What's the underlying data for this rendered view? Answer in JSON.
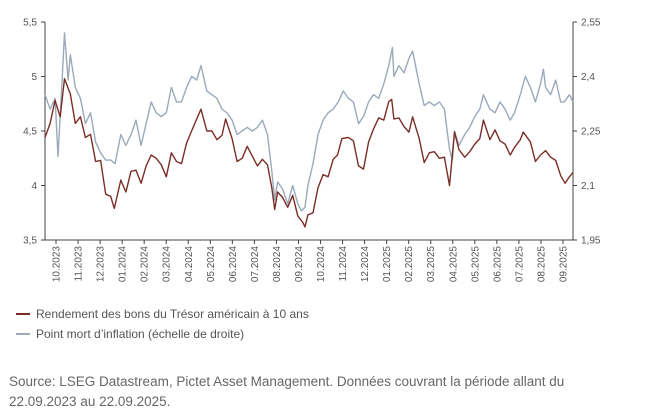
{
  "chart_data": {
    "type": "line",
    "title": "",
    "x_tick_labels": [
      "10.2023",
      "11.2023",
      "12.2023",
      "01.2024",
      "02.2024",
      "03.2024",
      "04.2024",
      "05.2024",
      "06.2024",
      "07.2024",
      "08.2024",
      "09.2024",
      "10.2024",
      "11.2024",
      "12.2024",
      "01.2025",
      "02.2025",
      "03.2025",
      "04.2025",
      "05.2025",
      "06.2025",
      "07.2025",
      "08.2025",
      "09.2025"
    ],
    "y_left": {
      "ylim": [
        3.5,
        5.5
      ],
      "ticks": [
        "3,5",
        "4",
        "4,5",
        "5",
        "5,5"
      ],
      "tick_values": [
        3.5,
        4,
        4.5,
        5,
        5.5
      ]
    },
    "y_right": {
      "ylim": [
        1.95,
        2.55
      ],
      "ticks": [
        "1,95",
        "2,1",
        "2,25",
        "2,4",
        "2,55"
      ],
      "tick_values": [
        1.95,
        2.1,
        2.25,
        2.4,
        2.55
      ]
    },
    "x_range": [
      "2023-09-22",
      "2025-09-22"
    ],
    "grid": false,
    "legend_position": "bottom-left",
    "series": [
      {
        "name": "Rendement des bons du Trésor américain à 10 ans",
        "axis": "left",
        "color": "#7b2d26",
        "points": [
          [
            "2023-09-22",
            4.44
          ],
          [
            "2023-09-29",
            4.57
          ],
          [
            "2023-10-06",
            4.78
          ],
          [
            "2023-10-13",
            4.63
          ],
          [
            "2023-10-19",
            4.98
          ],
          [
            "2023-10-27",
            4.84
          ],
          [
            "2023-11-03",
            4.57
          ],
          [
            "2023-11-10",
            4.63
          ],
          [
            "2023-11-17",
            4.44
          ],
          [
            "2023-11-24",
            4.47
          ],
          [
            "2023-12-01",
            4.22
          ],
          [
            "2023-12-08",
            4.23
          ],
          [
            "2023-12-15",
            3.92
          ],
          [
            "2023-12-22",
            3.9
          ],
          [
            "2023-12-27",
            3.79
          ],
          [
            "2024-01-05",
            4.05
          ],
          [
            "2024-01-12",
            3.94
          ],
          [
            "2024-01-19",
            4.13
          ],
          [
            "2024-01-26",
            4.14
          ],
          [
            "2024-02-02",
            4.02
          ],
          [
            "2024-02-09",
            4.18
          ],
          [
            "2024-02-16",
            4.28
          ],
          [
            "2024-02-23",
            4.25
          ],
          [
            "2024-03-01",
            4.19
          ],
          [
            "2024-03-08",
            4.08
          ],
          [
            "2024-03-15",
            4.3
          ],
          [
            "2024-03-22",
            4.22
          ],
          [
            "2024-03-29",
            4.2
          ],
          [
            "2024-04-05",
            4.39
          ],
          [
            "2024-04-12",
            4.5
          ],
          [
            "2024-04-19",
            4.61
          ],
          [
            "2024-04-25",
            4.7
          ],
          [
            "2024-05-03",
            4.5
          ],
          [
            "2024-05-10",
            4.5
          ],
          [
            "2024-05-17",
            4.42
          ],
          [
            "2024-05-24",
            4.46
          ],
          [
            "2024-05-29",
            4.61
          ],
          [
            "2024-06-07",
            4.43
          ],
          [
            "2024-06-14",
            4.22
          ],
          [
            "2024-06-21",
            4.25
          ],
          [
            "2024-06-28",
            4.36
          ],
          [
            "2024-07-05",
            4.27
          ],
          [
            "2024-07-12",
            4.18
          ],
          [
            "2024-07-19",
            4.24
          ],
          [
            "2024-07-26",
            4.19
          ],
          [
            "2024-08-01",
            3.98
          ],
          [
            "2024-08-05",
            3.78
          ],
          [
            "2024-08-09",
            3.94
          ],
          [
            "2024-08-16",
            3.89
          ],
          [
            "2024-08-23",
            3.8
          ],
          [
            "2024-08-30",
            3.91
          ],
          [
            "2024-09-06",
            3.72
          ],
          [
            "2024-09-13",
            3.66
          ],
          [
            "2024-09-16",
            3.62
          ],
          [
            "2024-09-20",
            3.73
          ],
          [
            "2024-09-27",
            3.75
          ],
          [
            "2024-10-04",
            3.98
          ],
          [
            "2024-10-11",
            4.1
          ],
          [
            "2024-10-18",
            4.08
          ],
          [
            "2024-10-25",
            4.24
          ],
          [
            "2024-10-31",
            4.28
          ],
          [
            "2024-11-06",
            4.43
          ],
          [
            "2024-11-15",
            4.44
          ],
          [
            "2024-11-22",
            4.41
          ],
          [
            "2024-11-29",
            4.18
          ],
          [
            "2024-12-06",
            4.15
          ],
          [
            "2024-12-13",
            4.4
          ],
          [
            "2024-12-20",
            4.52
          ],
          [
            "2024-12-27",
            4.62
          ],
          [
            "2025-01-03",
            4.6
          ],
          [
            "2025-01-10",
            4.77
          ],
          [
            "2025-01-14",
            4.79
          ],
          [
            "2025-01-17",
            4.61
          ],
          [
            "2025-01-24",
            4.62
          ],
          [
            "2025-01-31",
            4.54
          ],
          [
            "2025-02-07",
            4.49
          ],
          [
            "2025-02-12",
            4.63
          ],
          [
            "2025-02-21",
            4.43
          ],
          [
            "2025-02-28",
            4.21
          ],
          [
            "2025-03-07",
            4.3
          ],
          [
            "2025-03-14",
            4.31
          ],
          [
            "2025-03-21",
            4.25
          ],
          [
            "2025-03-28",
            4.26
          ],
          [
            "2025-04-04",
            4.0
          ],
          [
            "2025-04-11",
            4.49
          ],
          [
            "2025-04-17",
            4.33
          ],
          [
            "2025-04-25",
            4.26
          ],
          [
            "2025-05-02",
            4.31
          ],
          [
            "2025-05-09",
            4.38
          ],
          [
            "2025-05-16",
            4.43
          ],
          [
            "2025-05-21",
            4.6
          ],
          [
            "2025-05-30",
            4.42
          ],
          [
            "2025-06-06",
            4.51
          ],
          [
            "2025-06-13",
            4.41
          ],
          [
            "2025-06-20",
            4.38
          ],
          [
            "2025-06-27",
            4.28
          ],
          [
            "2025-07-03",
            4.35
          ],
          [
            "2025-07-11",
            4.42
          ],
          [
            "2025-07-15",
            4.49
          ],
          [
            "2025-07-25",
            4.4
          ],
          [
            "2025-08-01",
            4.22
          ],
          [
            "2025-08-08",
            4.28
          ],
          [
            "2025-08-15",
            4.32
          ],
          [
            "2025-08-22",
            4.26
          ],
          [
            "2025-08-29",
            4.23
          ],
          [
            "2025-09-05",
            4.09
          ],
          [
            "2025-09-11",
            4.02
          ],
          [
            "2025-09-17",
            4.08
          ],
          [
            "2025-09-22",
            4.12
          ]
        ]
      },
      {
        "name": "Point mort d’inflation (échelle de droite)",
        "axis": "right",
        "color": "#9aaabb",
        "points": [
          [
            "2023-09-22",
            2.35
          ],
          [
            "2023-09-29",
            2.31
          ],
          [
            "2023-10-06",
            2.34
          ],
          [
            "2023-10-10",
            2.18
          ],
          [
            "2023-10-16",
            2.4
          ],
          [
            "2023-10-19",
            2.52
          ],
          [
            "2023-10-24",
            2.39
          ],
          [
            "2023-10-27",
            2.46
          ],
          [
            "2023-11-03",
            2.37
          ],
          [
            "2023-11-10",
            2.34
          ],
          [
            "2023-11-17",
            2.27
          ],
          [
            "2023-11-24",
            2.3
          ],
          [
            "2023-12-01",
            2.22
          ],
          [
            "2023-12-08",
            2.19
          ],
          [
            "2023-12-15",
            2.17
          ],
          [
            "2023-12-22",
            2.17
          ],
          [
            "2023-12-28",
            2.16
          ],
          [
            "2024-01-05",
            2.24
          ],
          [
            "2024-01-12",
            2.21
          ],
          [
            "2024-01-19",
            2.24
          ],
          [
            "2024-01-26",
            2.28
          ],
          [
            "2024-02-02",
            2.21
          ],
          [
            "2024-02-09",
            2.27
          ],
          [
            "2024-02-16",
            2.33
          ],
          [
            "2024-02-23",
            2.3
          ],
          [
            "2024-03-01",
            2.29
          ],
          [
            "2024-03-08",
            2.3
          ],
          [
            "2024-03-15",
            2.37
          ],
          [
            "2024-03-22",
            2.33
          ],
          [
            "2024-03-29",
            2.33
          ],
          [
            "2024-04-05",
            2.37
          ],
          [
            "2024-04-12",
            2.4
          ],
          [
            "2024-04-19",
            2.39
          ],
          [
            "2024-04-25",
            2.43
          ],
          [
            "2024-05-03",
            2.36
          ],
          [
            "2024-05-10",
            2.35
          ],
          [
            "2024-05-17",
            2.34
          ],
          [
            "2024-05-24",
            2.31
          ],
          [
            "2024-05-31",
            2.3
          ],
          [
            "2024-06-07",
            2.28
          ],
          [
            "2024-06-14",
            2.24
          ],
          [
            "2024-06-21",
            2.25
          ],
          [
            "2024-06-28",
            2.26
          ],
          [
            "2024-07-05",
            2.25
          ],
          [
            "2024-07-12",
            2.26
          ],
          [
            "2024-07-19",
            2.28
          ],
          [
            "2024-07-26",
            2.24
          ],
          [
            "2024-08-01",
            2.14
          ],
          [
            "2024-08-05",
            2.06
          ],
          [
            "2024-08-09",
            2.11
          ],
          [
            "2024-08-16",
            2.09
          ],
          [
            "2024-08-23",
            2.05
          ],
          [
            "2024-08-30",
            2.1
          ],
          [
            "2024-09-06",
            2.05
          ],
          [
            "2024-09-11",
            2.03
          ],
          [
            "2024-09-16",
            2.04
          ],
          [
            "2024-09-20",
            2.1
          ],
          [
            "2024-09-27",
            2.16
          ],
          [
            "2024-10-04",
            2.24
          ],
          [
            "2024-10-11",
            2.28
          ],
          [
            "2024-10-18",
            2.3
          ],
          [
            "2024-10-25",
            2.31
          ],
          [
            "2024-11-01",
            2.33
          ],
          [
            "2024-11-08",
            2.36
          ],
          [
            "2024-11-15",
            2.34
          ],
          [
            "2024-11-22",
            2.33
          ],
          [
            "2024-11-29",
            2.27
          ],
          [
            "2024-12-06",
            2.29
          ],
          [
            "2024-12-13",
            2.33
          ],
          [
            "2024-12-20",
            2.35
          ],
          [
            "2024-12-27",
            2.34
          ],
          [
            "2025-01-03",
            2.38
          ],
          [
            "2025-01-10",
            2.43
          ],
          [
            "2025-01-15",
            2.48
          ],
          [
            "2025-01-17",
            2.4
          ],
          [
            "2025-01-24",
            2.43
          ],
          [
            "2025-01-31",
            2.41
          ],
          [
            "2025-02-07",
            2.45
          ],
          [
            "2025-02-12",
            2.47
          ],
          [
            "2025-02-21",
            2.38
          ],
          [
            "2025-02-28",
            2.32
          ],
          [
            "2025-03-07",
            2.33
          ],
          [
            "2025-03-14",
            2.32
          ],
          [
            "2025-03-21",
            2.33
          ],
          [
            "2025-03-28",
            2.31
          ],
          [
            "2025-04-04",
            2.2
          ],
          [
            "2025-04-08",
            2.17
          ],
          [
            "2025-04-11",
            2.25
          ],
          [
            "2025-04-17",
            2.21
          ],
          [
            "2025-04-25",
            2.24
          ],
          [
            "2025-05-02",
            2.26
          ],
          [
            "2025-05-09",
            2.29
          ],
          [
            "2025-05-16",
            2.31
          ],
          [
            "2025-05-21",
            2.35
          ],
          [
            "2025-05-30",
            2.31
          ],
          [
            "2025-06-06",
            2.3
          ],
          [
            "2025-06-13",
            2.33
          ],
          [
            "2025-06-20",
            2.31
          ],
          [
            "2025-06-27",
            2.28
          ],
          [
            "2025-07-03",
            2.3
          ],
          [
            "2025-07-11",
            2.35
          ],
          [
            "2025-07-18",
            2.4
          ],
          [
            "2025-07-25",
            2.37
          ],
          [
            "2025-08-01",
            2.33
          ],
          [
            "2025-08-08",
            2.38
          ],
          [
            "2025-08-12",
            2.42
          ],
          [
            "2025-08-15",
            2.37
          ],
          [
            "2025-08-22",
            2.35
          ],
          [
            "2025-08-29",
            2.39
          ],
          [
            "2025-09-05",
            2.33
          ],
          [
            "2025-09-10",
            2.33
          ],
          [
            "2025-09-17",
            2.35
          ],
          [
            "2025-09-22",
            2.33
          ]
        ]
      }
    ]
  },
  "legend": {
    "item1": "Rendement des bons du Trésor américain à 10 ans",
    "item2": "Point mort d’inflation (échelle de droite)"
  },
  "source_text": "Source: LSEG Datastream, Pictet Asset Management. Données couvrant la période allant du 22.09.2023 au 22.09.2025."
}
